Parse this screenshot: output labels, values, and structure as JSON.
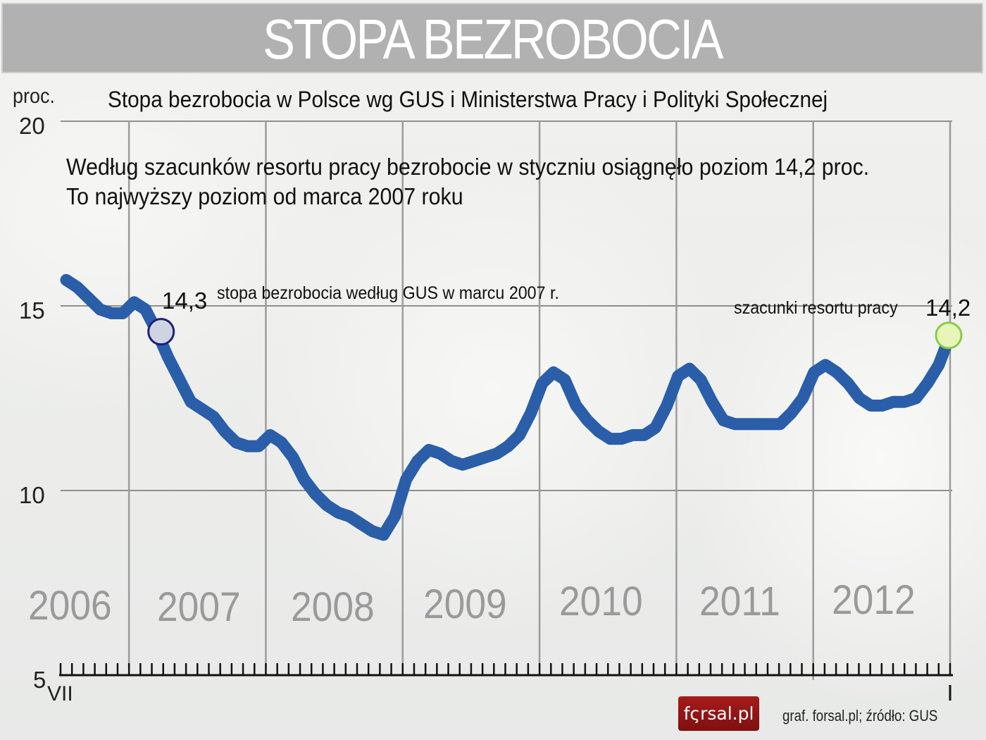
{
  "header": {
    "title": "STOPA BEZROBOCIA"
  },
  "chart": {
    "unit_label": "proc.",
    "subtitle": "Stopa bezrobocia w Polsce wg GUS i Ministerstwa Pracy i Polityki Społecznej",
    "note_line1": "Według szacunków resortu pracy bezrobocie w styczniu osiągnęło poziom 14,2 proc.",
    "note_line2": "To najwyższy poziom od marca 2007 roku",
    "y_ticks": [
      "20",
      "15",
      "10",
      "5"
    ],
    "years": [
      "2006",
      "2007",
      "2008",
      "2009",
      "2010",
      "2011",
      "2012"
    ],
    "start_month": "VII",
    "end_month": "I",
    "callout_gus_value": "14,3",
    "callout_gus_text": "stopa bezrobocia według GUS w marcu 2007 r.",
    "callout_ministry_text": "szacunki resortu pracy",
    "callout_ministry_value": "14,2"
  },
  "footer": {
    "logo": "fςrsal.pl",
    "source": "graf. forsal.pl; źródło: GUS"
  },
  "colors": {
    "line": "#2a5ea9",
    "gus_marker_fill": "#cfd4e3",
    "gus_marker_stroke": "#1f1f7a",
    "ministry_marker_fill": "#e8f5b8",
    "ministry_marker_stroke": "#8acb4a",
    "header_bg": "#b1b1b1",
    "year_label": "#9a9a9a",
    "logo_bg": "#8f1516"
  },
  "chart_data": {
    "type": "line",
    "title": "STOPA BEZROBOCIA",
    "subtitle": "Stopa bezrobocia w Polsce wg GUS i Ministerstwa Pracy i Polityki Społecznej",
    "xlabel": "",
    "ylabel": "proc.",
    "ylim": [
      5,
      20
    ],
    "yticks": [
      5,
      10,
      15,
      20
    ],
    "grid": {
      "horizontal": true,
      "vertical": true
    },
    "x_start": "VII 2006",
    "x_end": "I",
    "year_labels": [
      "2006",
      "2007",
      "2008",
      "2009",
      "2010",
      "2011",
      "2012"
    ],
    "x": [
      "2006-07",
      "2006-08",
      "2006-09",
      "2006-10",
      "2006-11",
      "2006-12",
      "2007-01",
      "2007-02",
      "2007-03",
      "2007-04",
      "2007-05",
      "2007-06",
      "2007-07",
      "2007-08",
      "2007-09",
      "2007-10",
      "2007-11",
      "2007-12",
      "2008-01",
      "2008-02",
      "2008-03",
      "2008-04",
      "2008-05",
      "2008-06",
      "2008-07",
      "2008-08",
      "2008-09",
      "2008-10",
      "2008-11",
      "2008-12",
      "2009-01",
      "2009-02",
      "2009-03",
      "2009-04",
      "2009-05",
      "2009-06",
      "2009-07",
      "2009-08",
      "2009-09",
      "2009-10",
      "2009-11",
      "2009-12",
      "2010-01",
      "2010-02",
      "2010-03",
      "2010-04",
      "2010-05",
      "2010-06",
      "2010-07",
      "2010-08",
      "2010-09",
      "2010-10",
      "2010-11",
      "2010-12",
      "2011-01",
      "2011-02",
      "2011-03",
      "2011-04",
      "2011-05",
      "2011-06",
      "2011-07",
      "2011-08",
      "2011-09",
      "2011-10",
      "2011-11",
      "2011-12",
      "2012-01",
      "2012-02",
      "2012-03",
      "2012-04",
      "2012-05",
      "2012-06",
      "2012-07",
      "2012-08",
      "2012-09",
      "2012-10",
      "2012-11",
      "2012-12",
      "2013-01"
    ],
    "series": [
      {
        "name": "Stopa bezrobocia",
        "values": [
          15.7,
          15.5,
          15.2,
          14.9,
          14.8,
          14.8,
          15.1,
          14.9,
          14.3,
          13.6,
          13.0,
          12.4,
          12.2,
          12.0,
          11.6,
          11.3,
          11.2,
          11.2,
          11.5,
          11.3,
          10.9,
          10.3,
          9.9,
          9.6,
          9.4,
          9.3,
          9.1,
          8.9,
          8.8,
          9.3,
          10.3,
          10.8,
          11.1,
          11.0,
          10.8,
          10.7,
          10.8,
          10.9,
          11.0,
          11.2,
          11.5,
          12.1,
          12.9,
          13.2,
          13.0,
          12.3,
          11.9,
          11.6,
          11.4,
          11.4,
          11.5,
          11.5,
          11.7,
          12.3,
          13.1,
          13.3,
          13.0,
          12.4,
          11.9,
          11.8,
          11.8,
          11.8,
          11.8,
          11.8,
          12.1,
          12.5,
          13.2,
          13.4,
          13.2,
          12.9,
          12.5,
          12.3,
          12.3,
          12.4,
          12.4,
          12.5,
          12.9,
          13.4,
          14.2
        ]
      }
    ],
    "annotations": [
      {
        "x": "2007-03",
        "value": 14.3,
        "label": "14,3",
        "text": "stopa bezrobocia według GUS w marcu 2007 r."
      },
      {
        "x": "2013-01",
        "value": 14.2,
        "label": "14,2",
        "text": "szacunki resortu pracy"
      }
    ],
    "source": "graf. forsal.pl; źródło: GUS"
  }
}
